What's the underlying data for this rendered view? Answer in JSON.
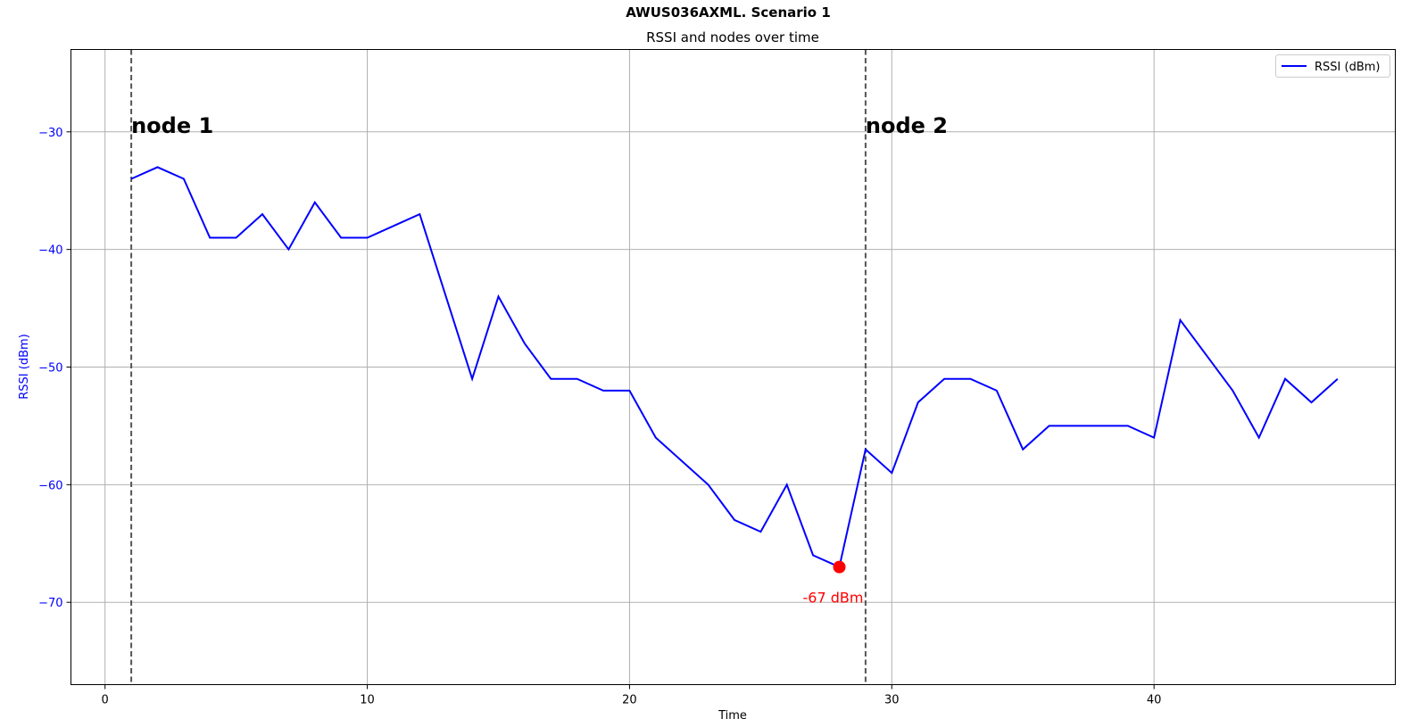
{
  "chart_data": {
    "type": "line",
    "suptitle": "AWUS036AXML. Scenario 1",
    "title": "RSSI and nodes over time",
    "xlabel": "Time",
    "ylabel": "RSSI (dBm)",
    "xlim": [
      -1.3,
      49.2
    ],
    "ylim": [
      -77,
      -23
    ],
    "xticks": [
      0,
      10,
      20,
      30,
      40
    ],
    "yticks": [
      -30,
      -40,
      -50,
      -60,
      -70
    ],
    "grid": true,
    "legend_position": "top-right",
    "colors": {
      "series": "#0000ff",
      "marker": "#ff0000",
      "axis_y": "#0000ff",
      "vline": "#555555"
    },
    "series": [
      {
        "name": "RSSI (dBm)",
        "x": [
          1,
          2,
          3,
          4,
          5,
          6,
          7,
          8,
          9,
          10,
          11,
          12,
          13,
          14,
          15,
          16,
          17,
          18,
          19,
          20,
          21,
          22,
          23,
          24,
          25,
          26,
          27,
          28,
          29,
          30,
          31,
          32,
          33,
          34,
          35,
          36,
          37,
          38,
          39,
          40,
          41,
          42,
          43,
          44,
          45,
          46,
          47
        ],
        "values": [
          -34,
          -33,
          -34,
          -39,
          -39,
          -37,
          -40,
          -36,
          -39,
          -39,
          -38,
          -37,
          -44,
          -51,
          -44,
          -48,
          -51,
          -51,
          -52,
          -52,
          -56,
          -58,
          -60,
          -63,
          -64,
          -60,
          -66,
          -67,
          -57,
          -59,
          -53,
          -51,
          -51,
          -52,
          -57,
          -55,
          -55,
          -55,
          -55,
          -56,
          -46,
          -49,
          -52,
          -56,
          -51,
          -53,
          -51
        ]
      }
    ],
    "vlines": [
      {
        "x": 1,
        "label": "node 1"
      },
      {
        "x": 29,
        "label": "node 2"
      }
    ],
    "min_point": {
      "x": 28,
      "y": -67,
      "label": "-67 dBm"
    }
  }
}
